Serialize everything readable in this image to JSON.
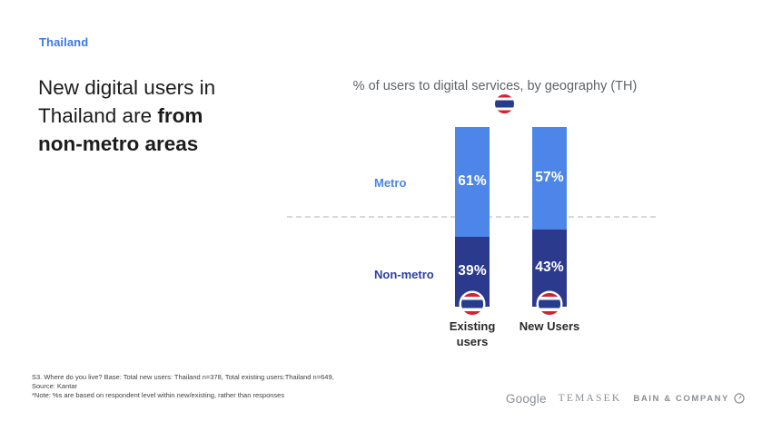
{
  "palette": {
    "metro_blue": "#4d86e8",
    "non_metro_blue": "#2c3a8d",
    "accent_blue": "#3b78e8",
    "flag_red": "#d3232e",
    "flag_blue": "#263c8c",
    "reference_line_gray": "#d8d8d4"
  },
  "slide": {
    "eyebrow": "Thailand",
    "headline": {
      "line1": "New digital users in",
      "line2_regular": "Thailand are ",
      "line2_bold": "from",
      "line3_bold": "non-metro areas"
    }
  },
  "chart": {
    "title": "% of users to digital services, by geography (TH)",
    "flag_icon": "thailand-flag",
    "row_labels": {
      "metro": "Metro",
      "non_metro": "Non-metro"
    }
  },
  "chart_data": {
    "type": "bar",
    "subtype": "stacked-percentage-column",
    "title": "% of users to digital services, by geography (TH)",
    "categories": [
      "Existing users",
      "New Users"
    ],
    "category_label_lines": {
      "cat1_line1": "Existing",
      "cat1_line2": "users",
      "cat2_line1": "New Users"
    },
    "series": [
      {
        "name": "Metro",
        "color": "#4d86e8",
        "values": [
          61,
          57
        ],
        "labels": [
          "61%",
          "57%"
        ]
      },
      {
        "name": "Non-metro",
        "color": "#2c3a8d",
        "values": [
          39,
          43
        ],
        "labels": [
          "39%",
          "43%"
        ]
      }
    ],
    "value_suffix": "%",
    "ylim": [
      0,
      100
    ],
    "reference_line": {
      "value": 50,
      "style": "dashed"
    },
    "legend_position": "left-of-bars",
    "grid": false
  },
  "footnote": {
    "line1": "S3. Where do you live? Base: Total new users: Thailand n=378, Total existing  users:Thailand n=649,",
    "line2": "Source: Kantar",
    "line3": "*Note: %s are based on respondent level within new/existing, rather than responses"
  },
  "footer_logos": {
    "google": "Google",
    "temasek": "TEMASEK",
    "bain": "BAIN & COMPANY"
  }
}
